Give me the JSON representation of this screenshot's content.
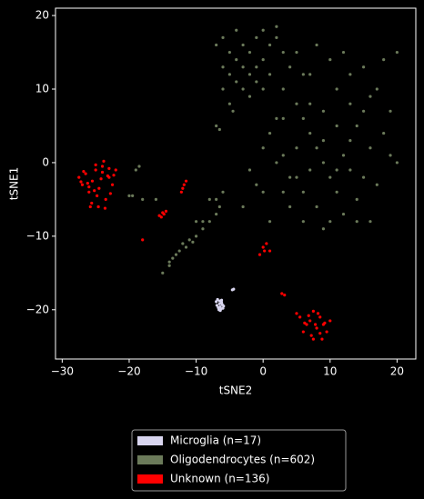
{
  "chart_data": {
    "type": "scatter",
    "xlabel": "tSNE2",
    "ylabel": "tSNE1",
    "xlim": [
      -31,
      22.8
    ],
    "ylim": [
      -26.7,
      21
    ],
    "xticks": [
      {
        "value": -30,
        "label": "−30"
      },
      {
        "value": -20,
        "label": "−20"
      },
      {
        "value": -10,
        "label": "−10"
      },
      0,
      10,
      20
    ],
    "yticks": [
      {
        "value": -20,
        "label": "−20"
      },
      {
        "value": -10,
        "label": "−10"
      },
      0,
      10,
      20
    ],
    "legend": "below",
    "series": [
      {
        "name": "Microglia (n=17)",
        "color": "#d9d6f0",
        "x": [
          -6.8,
          -6.5,
          -6.2,
          -6.9,
          -6.4,
          -6.0,
          -6.6,
          -6.3,
          -7.0,
          -6.1,
          -6.7,
          -6.4,
          -6.2,
          -5.9,
          -6.5,
          -4.6,
          -4.4
        ],
        "y": [
          -18.6,
          -18.8,
          -19.0,
          -19.4,
          -19.6,
          -19.8,
          -20.0,
          -19.9,
          -18.9,
          -19.3,
          -19.7,
          -20.1,
          -18.7,
          -19.5,
          -19.2,
          -17.3,
          -17.2
        ]
      },
      {
        "name": "Oligodendrocytes (n=602)",
        "color": "#6b7a5a",
        "x": [
          -7,
          -6,
          -5,
          -4,
          -3,
          -2,
          -1,
          0,
          1,
          2,
          3,
          -6,
          -5,
          -4,
          -3,
          -2,
          -1,
          0,
          2,
          -4,
          -6,
          -7,
          -5,
          -3,
          -1,
          1,
          3,
          4,
          -2,
          0,
          -6.5,
          -4.5,
          5,
          6,
          7,
          8,
          9,
          10,
          11,
          12,
          13,
          14,
          15,
          16,
          17,
          18,
          19,
          20,
          17,
          16,
          14,
          12,
          10,
          8,
          6,
          4,
          2,
          0,
          -2,
          1,
          3,
          5,
          7,
          9,
          11,
          13,
          15,
          4,
          6,
          9,
          11,
          13,
          10,
          7,
          5,
          8,
          12,
          15,
          18,
          -1,
          -3,
          3,
          1,
          7,
          9,
          11,
          13,
          16,
          14,
          5,
          3,
          0,
          20,
          19,
          2,
          6,
          -15,
          -14,
          -13.5,
          -13,
          -12.5,
          -12,
          -11.5,
          -11,
          -10.5,
          -10,
          -9,
          -8,
          -7,
          -6.5,
          -7,
          -8,
          -6,
          -9,
          -10,
          -14,
          -20,
          -19.5,
          -18.5,
          -19,
          -18,
          -16
        ],
        "y": [
          16,
          17,
          15,
          14,
          13,
          12,
          11,
          14,
          16,
          17,
          15,
          13,
          12,
          11,
          10,
          15,
          17,
          18,
          18.5,
          18,
          10,
          5,
          8,
          16,
          13,
          12,
          10,
          13,
          9,
          10,
          4.5,
          7,
          8,
          6,
          4,
          2,
          0,
          -2,
          -4,
          1,
          3,
          5,
          7,
          9,
          10,
          4,
          1,
          0,
          -3,
          -8,
          -5,
          -7,
          -8,
          -6,
          -4,
          -2,
          0,
          2,
          -1,
          4,
          6,
          2,
          -1,
          3,
          5,
          -1,
          -2,
          -6,
          -8,
          -9,
          10,
          12,
          14,
          12,
          15,
          16,
          15,
          13,
          14,
          -3,
          -6,
          -4,
          -8,
          8,
          7,
          -1,
          8,
          2,
          -8,
          -2,
          1,
          -4,
          15,
          7,
          6,
          12,
          -15,
          -14,
          -13,
          -12.5,
          -12,
          -11,
          -11.5,
          -10.5,
          -10.8,
          -10,
          -9,
          -8,
          -7,
          -6,
          -5,
          -5,
          -4,
          -8,
          -8,
          -13.5,
          -4.5,
          -4.5,
          -0.5,
          -1,
          -5,
          -5
        ]
      },
      {
        "name": "Unknown (n=136)",
        "color": "#ff0000",
        "x": [
          -27.5,
          -27,
          -26.5,
          -26,
          -25.5,
          -25,
          -24.5,
          -24,
          -23.5,
          -23,
          -22.5,
          -22,
          -26.8,
          -25.8,
          -24.8,
          -23.8,
          -22.8,
          -26.2,
          -25.2,
          -24.2,
          -23.2,
          -25.6,
          -24.6,
          -23.6,
          -24.0,
          -25.0,
          -23.0,
          -26.0,
          -22.3,
          -27.2,
          -15.5,
          -15,
          -14.8,
          -15.2,
          -14.5,
          -12,
          -11.8,
          -12.2,
          -11.5,
          -18,
          -0.5,
          0,
          0.5,
          1,
          0.2,
          2.8,
          3.2,
          5,
          5.5,
          6,
          6.5,
          7,
          7.5,
          8,
          8.5,
          9,
          9.5,
          8.2,
          7.2,
          6.8,
          8.8,
          9.2,
          7.8,
          6.2,
          8.5,
          7.5,
          10
        ],
        "y": [
          -2,
          -3,
          -1.5,
          -4,
          -2.5,
          -1,
          -3.5,
          -0.5,
          -5,
          -2,
          -3,
          -1,
          -1.2,
          -6,
          -4.5,
          0.2,
          -4.2,
          -2.8,
          -3.8,
          -2.2,
          -1.8,
          -5.5,
          -6,
          -6.2,
          -1.3,
          -0.3,
          -0.8,
          -3.3,
          -1.7,
          -2.6,
          -7.2,
          -6.8,
          -7,
          -7.4,
          -6.6,
          -3.5,
          -3,
          -4,
          -2.5,
          -10.5,
          -12.5,
          -11.5,
          -11,
          -12,
          -12,
          -17.8,
          -18,
          -20.5,
          -21,
          -23,
          -22,
          -21.5,
          -24,
          -22.5,
          -21,
          -22,
          -23,
          -20.5,
          -23.5,
          -20.8,
          -24,
          -21.8,
          -22,
          -21.8,
          -23.2,
          -20.2,
          -21.5
        ]
      }
    ]
  }
}
